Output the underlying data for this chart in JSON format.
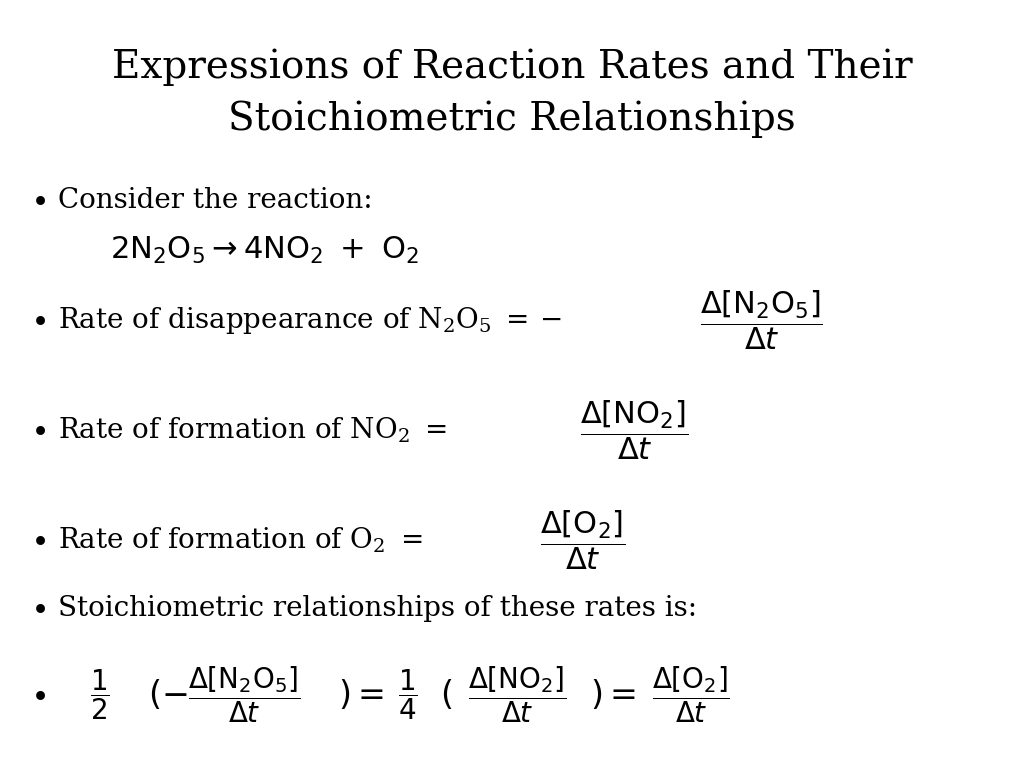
{
  "title_line1": "Expressions of Reaction Rates and Their",
  "title_line2": "Stoichiometric Relationships",
  "background_color": "#ffffff",
  "text_color": "#000000",
  "title_fontsize": 28,
  "body_fontsize": 20,
  "math_fontsize": 20,
  "small_fontsize": 18
}
